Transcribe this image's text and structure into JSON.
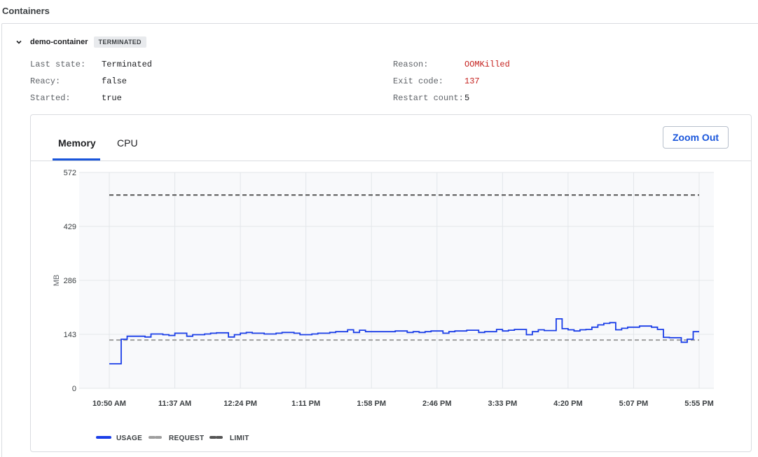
{
  "section": {
    "title": "Containers"
  },
  "container": {
    "name": "demo-container",
    "status": "TERMINATED",
    "left_fields": [
      {
        "key": "Last state:",
        "value": "Terminated"
      },
      {
        "key": "Reacy:",
        "value": "false"
      },
      {
        "key": "Started:",
        "value": "true"
      }
    ],
    "right_fields": [
      {
        "key": "Reason:",
        "value": "OOMKilled"
      },
      {
        "key": "Exit code:",
        "value": "137"
      },
      {
        "key": "Restart count:",
        "value": "5"
      }
    ]
  },
  "tabs": [
    {
      "label": "Memory",
      "active": true
    },
    {
      "label": "CPU",
      "active": false
    }
  ],
  "zoom_out_label": "Zoom Out",
  "colors": {
    "usage": "#1a3ee8",
    "request": "#9e9e9e",
    "limit": "#545454",
    "error": "#c5221f",
    "accent": "#1a56db"
  },
  "icons": {
    "collapse": "chevron-down-icon"
  },
  "chart_data": {
    "type": "line",
    "ylabel": "MB",
    "xlabel": "",
    "ylim": [
      0,
      572
    ],
    "yticks": [
      0,
      143,
      286,
      429,
      572
    ],
    "x_tick_labels": [
      "10:50 AM",
      "11:37 AM",
      "12:24 PM",
      "1:11 PM",
      "1:58 PM",
      "2:46 PM",
      "3:33 PM",
      "4:20 PM",
      "5:07 PM",
      "5:55 PM"
    ],
    "grid": true,
    "legend_position": "bottom-left",
    "series": [
      {
        "name": "USAGE",
        "style": "step",
        "values": [
          65,
          65,
          130,
          138,
          138,
          138,
          136,
          144,
          144,
          142,
          140,
          146,
          146,
          138,
          142,
          142,
          144,
          146,
          147,
          147,
          136,
          142,
          146,
          148,
          146,
          146,
          144,
          144,
          146,
          148,
          148,
          146,
          142,
          142,
          144,
          146,
          146,
          148,
          150,
          150,
          155,
          148,
          154,
          150,
          150,
          150,
          150,
          150,
          152,
          152,
          148,
          150,
          148,
          150,
          152,
          152,
          146,
          150,
          152,
          152,
          154,
          154,
          148,
          150,
          150,
          156,
          152,
          154,
          156,
          156,
          142,
          150,
          155,
          153,
          153,
          184,
          158,
          155,
          152,
          155,
          156,
          162,
          168,
          172,
          174,
          155,
          159,
          162,
          162,
          165,
          165,
          162,
          156,
          135,
          134,
          134,
          122,
          130,
          150
        ]
      },
      {
        "name": "REQUEST",
        "style": "dashed",
        "values": [
          128
        ]
      },
      {
        "name": "LIMIT",
        "style": "dashed",
        "values": [
          512
        ]
      }
    ]
  }
}
